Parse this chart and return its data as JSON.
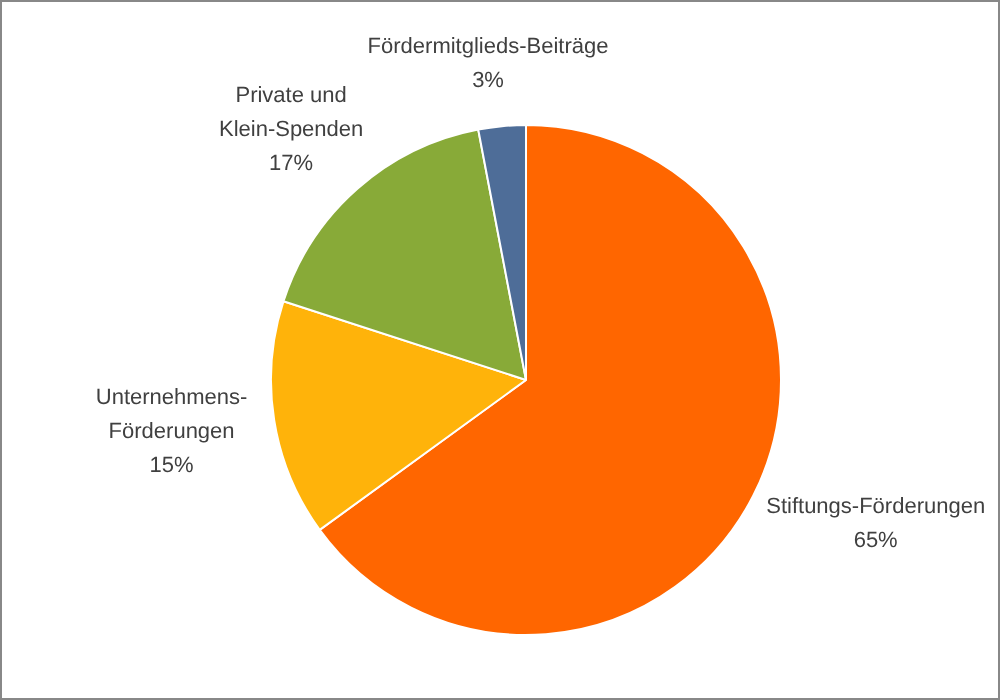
{
  "chart_data": {
    "type": "pie",
    "categories": [
      "Stiftungs-Förderungen",
      "Unternehmens-Förderungen",
      "Private und Klein-Spenden",
      "Fördermitglieds-Beiträge"
    ],
    "values": [
      65,
      15,
      17,
      3
    ],
    "value_labels": [
      "65%",
      "15%",
      "17%",
      "3%"
    ],
    "colors": [
      "#ff6600",
      "#ffb30a",
      "#88aa38",
      "#4e6d98"
    ],
    "legend": false
  }
}
